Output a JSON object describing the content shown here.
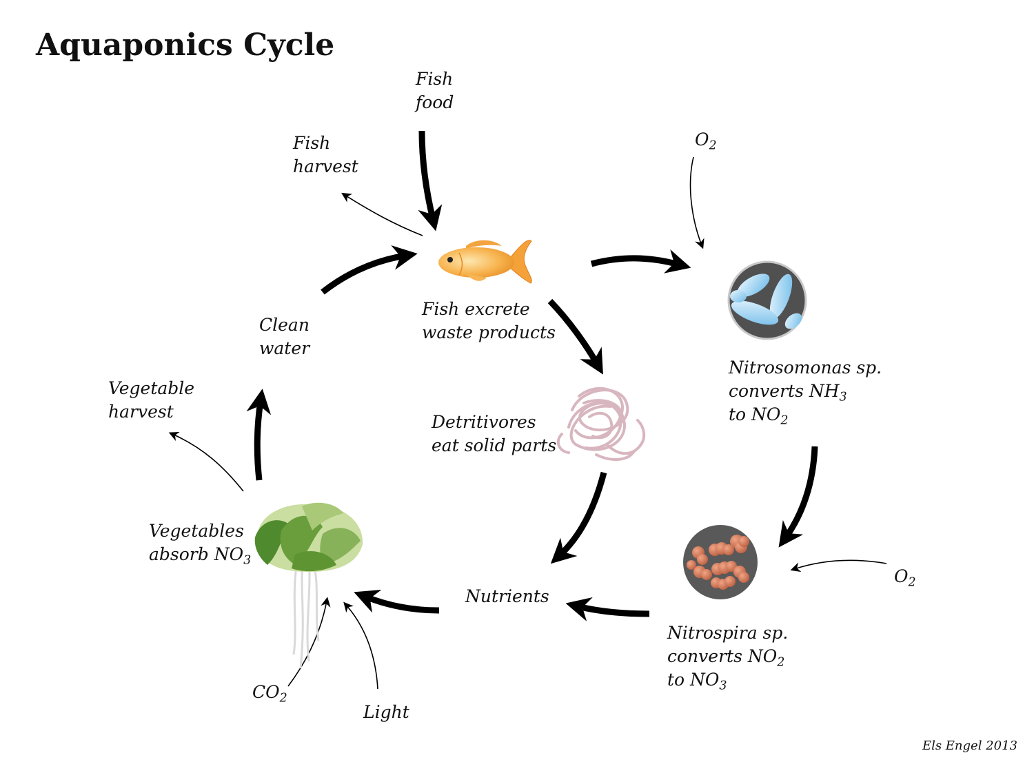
{
  "title": "Aquaponics Cycle",
  "credit": "Els Engel 2013",
  "labels": {
    "fish_food": [
      "Fish",
      "food"
    ],
    "fish_harvest": [
      "Fish",
      "harvest"
    ],
    "fish_excrete": [
      "Fish excrete",
      "waste products"
    ],
    "detritivores": [
      "Detritivores",
      "eat solid parts"
    ],
    "clean_water": [
      "Clean",
      "water"
    ],
    "vegetable_harvest": [
      "Vegetable",
      "harvest"
    ],
    "vegetables_absorb": {
      "line1": "Vegetables",
      "line2": "absorb NO",
      "sub": "3"
    },
    "nutrients": "Nutrients",
    "nitrosomonas": {
      "line1": "Nitrosomonas sp.",
      "line2": "converts NH",
      "line2_sub": "3",
      "line3": "to NO",
      "line3_sub": "2"
    },
    "nitrospira": {
      "line1": "Nitrospira sp.",
      "line2": "converts NO",
      "line2_sub": "2",
      "line3": "to NO",
      "line3_sub": "3"
    },
    "o2_top": {
      "text": "O",
      "sub": "2"
    },
    "o2_right": {
      "text": "O",
      "sub": "2"
    },
    "co2": {
      "text": "CO",
      "sub": "2"
    },
    "light": "Light"
  },
  "icons": [
    "goldfish-icon",
    "detritivore-worms-icon",
    "nitrosomonas-bacteria-icon",
    "nitrospira-bacteria-icon",
    "lettuce-plant-icon"
  ],
  "colors": {
    "arrow": "#000000",
    "fish": "#f4a23c",
    "worms": "#d8b9c0",
    "bacteria_bg": "#555555",
    "nitrosomonas": "#8ccbf0",
    "nitrospira": "#cc7050",
    "lettuce_dark": "#4e8a2e",
    "lettuce_light": "#c9dea0"
  }
}
